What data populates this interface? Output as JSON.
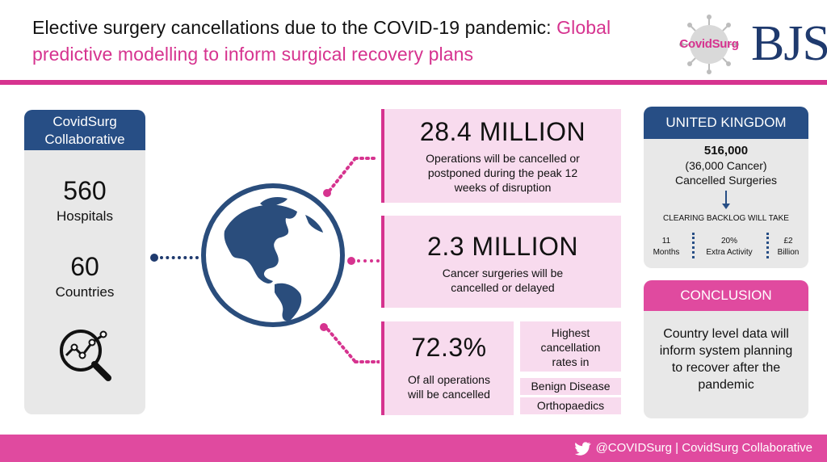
{
  "header": {
    "title_black": "Elective surgery cancellations due to the COVID-19 pandemic: ",
    "title_pink": "Global predictive modelling to inform surgical recovery plans"
  },
  "logos": {
    "covidsurg": "CovidSurg",
    "bjs": "BJS"
  },
  "left_panel": {
    "heading_line1": "CovidSurg",
    "heading_line2": "Collaborative",
    "hospitals_value": "560",
    "hospitals_label": "Hospitals",
    "countries_value": "60",
    "countries_label": "Countries",
    "icon": "magnifier-chart-icon"
  },
  "globe_icon": "globe-americas-icon",
  "stat1": {
    "value": "28.4 MILLION",
    "desc_line1": "Operations will be cancelled or",
    "desc_line2": "postponed during the peak 12",
    "desc_line3": "weeks of disruption"
  },
  "stat2": {
    "value": "2.3 MILLION",
    "desc_line1": "Cancer surgeries will be",
    "desc_line2": "cancelled or delayed"
  },
  "stat3": {
    "value": "72.3%",
    "desc_line1": "Of all operations",
    "desc_line2": "will be cancelled",
    "highest_line1": "Highest",
    "highest_line2": "cancellation",
    "highest_line3": "rates in",
    "item1": "Benign Disease",
    "item2": "Orthopaedics"
  },
  "uk": {
    "heading": "UNITED KINGDOM",
    "total": "516,000",
    "cancer": "(36,000 Cancer)",
    "cancelled": "Cancelled Surgeries",
    "backlog": "CLEARING BACKLOG WILL TAKE",
    "months_value": "11",
    "months_label": "Months",
    "activity_value": "20%",
    "activity_label": "Extra Activity",
    "cost_value": "£2",
    "cost_label": "Billion"
  },
  "conclusion": {
    "heading": "CONCLUSION",
    "line1": "Country level data will",
    "line2": "inform system planning",
    "line3": "to recover after the",
    "line4": "pandemic"
  },
  "footer": {
    "handle": "@COVIDSurg",
    "separator": "|",
    "org": "CovidSurg Collaborative"
  },
  "colors": {
    "pink": "#d6338f",
    "navy": "#274e85",
    "light_pink": "#f8dbee",
    "panel_grey": "#e8e8e8"
  }
}
